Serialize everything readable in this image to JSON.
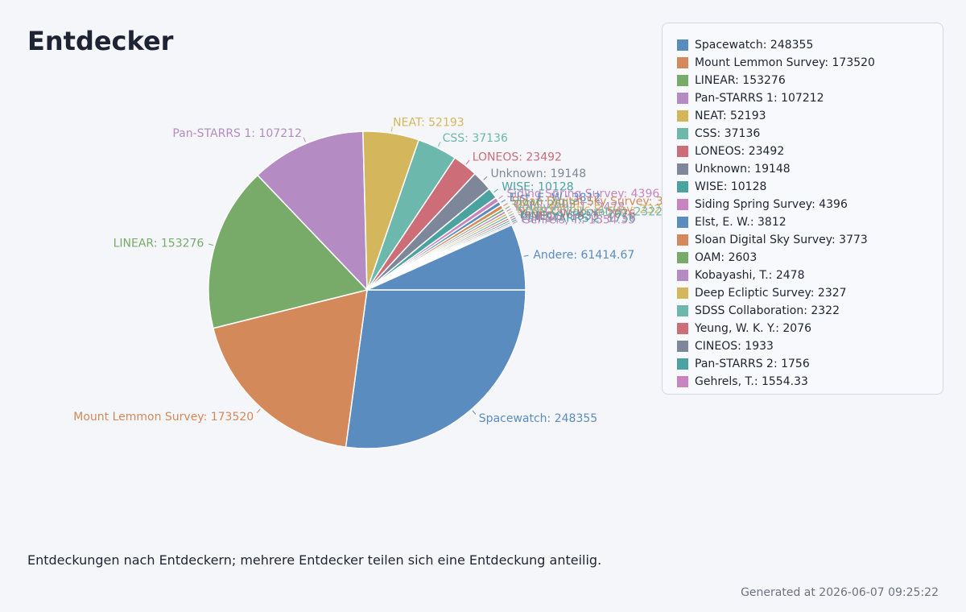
{
  "page": {
    "title": "Entdecker",
    "caption": "Entdeckungen nach Entdeckern; mehrere Entdecker teilen sich eine Entdeckung anteilig.",
    "footer": "Generated at 2026-06-07 09:25:22"
  },
  "chart_data": {
    "type": "pie",
    "title": "Entdecker",
    "legend_position": "top-right",
    "slices": [
      {
        "label": "Spacewatch",
        "value": 248355,
        "color": "#5b8cc0"
      },
      {
        "label": "Mount Lemmon Survey",
        "value": 173520,
        "color": "#d4895a"
      },
      {
        "label": "LINEAR",
        "value": 153276,
        "color": "#78aa6a"
      },
      {
        "label": "Pan-STARRS 1",
        "value": 107212,
        "color": "#b58bc4"
      },
      {
        "label": "NEAT",
        "value": 52193,
        "color": "#d4b65c"
      },
      {
        "label": "CSS",
        "value": 37136,
        "color": "#6cb8ad"
      },
      {
        "label": "LONEOS",
        "value": 23492,
        "color": "#cc6d78"
      },
      {
        "label": "Unknown",
        "value": 19148,
        "color": "#7e879a"
      },
      {
        "label": "WISE",
        "value": 10128,
        "color": "#4aa3a0"
      },
      {
        "label": "Siding Spring Survey",
        "value": 4396,
        "color": "#c884c0"
      },
      {
        "label": "Elst, E. W.",
        "value": 3812,
        "color": "#5b8cc0"
      },
      {
        "label": "Sloan Digital Sky Survey",
        "value": 3773,
        "color": "#d4895a"
      },
      {
        "label": "OAM",
        "value": 2603,
        "color": "#78aa6a"
      },
      {
        "label": "Kobayashi, T.",
        "value": 2478,
        "color": "#b58bc4"
      },
      {
        "label": "Deep Ecliptic Survey",
        "value": 2327,
        "color": "#d4b65c"
      },
      {
        "label": "SDSS Collaboration",
        "value": 2322,
        "color": "#6cb8ad"
      },
      {
        "label": "Yeung, W. K. Y.",
        "value": 2076,
        "color": "#cc6d78"
      },
      {
        "label": "CINEOS",
        "value": 1933,
        "color": "#7e879a"
      },
      {
        "label": "Pan-STARRS 2",
        "value": 1756,
        "color": "#4aa3a0"
      },
      {
        "label": "Gehrels, T.",
        "value": 1554.33,
        "color": "#c884c0"
      },
      {
        "label": "Andere",
        "value": 61414.67,
        "color": "#5b8cc0",
        "legend": false
      }
    ]
  }
}
